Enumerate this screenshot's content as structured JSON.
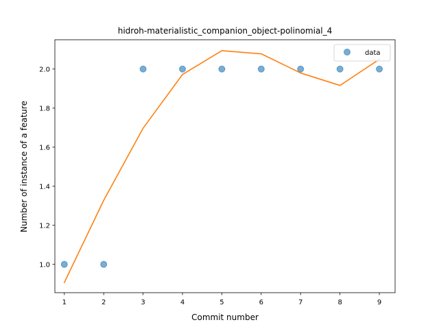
{
  "chart_data": {
    "type": "scatter",
    "title": "hidroh-materialistic_companion_object-polinomial_4",
    "xlabel": "Commit number",
    "ylabel": "Number of instance of a feature",
    "xlim": [
      0.76,
      9.4
    ],
    "ylim": [
      0.855,
      2.15
    ],
    "xticks": [
      1,
      2,
      3,
      4,
      5,
      6,
      7,
      8,
      9
    ],
    "yticks": [
      1.0,
      1.2,
      1.4,
      1.6,
      1.8,
      2.0
    ],
    "ytick_labels": [
      "1.0",
      "1.2",
      "1.4",
      "1.6",
      "1.8",
      "2.0"
    ],
    "grid": false,
    "legend_position": "upper right",
    "series": [
      {
        "name": "data",
        "kind": "markers",
        "color": "#1f77b4",
        "x": [
          1,
          2,
          3,
          4,
          5,
          6,
          7,
          8,
          9
        ],
        "y": [
          1,
          1,
          2,
          2,
          2,
          2,
          2,
          2,
          2
        ]
      },
      {
        "kind": "line",
        "color": "#ff7f0e",
        "x": [
          1,
          2,
          3,
          4,
          5,
          6,
          7,
          8,
          9
        ],
        "y": [
          0.907,
          1.328,
          1.697,
          1.972,
          2.094,
          2.078,
          1.98,
          1.916,
          2.05
        ]
      }
    ]
  }
}
